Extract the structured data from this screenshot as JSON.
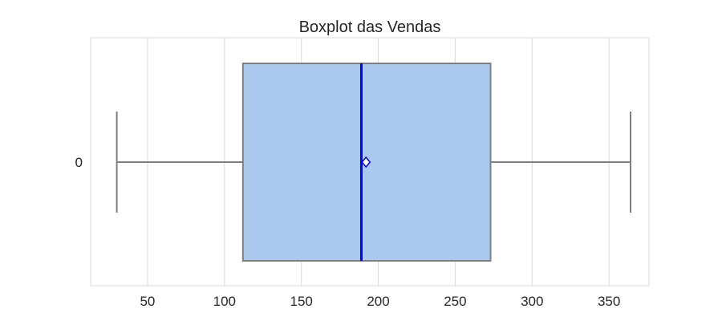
{
  "chart_data": {
    "type": "boxplot",
    "title": "Boxplot das Vendas",
    "xlabel": "",
    "ylabel": "",
    "categories": [
      "0"
    ],
    "xlim": [
      13,
      376
    ],
    "xticks": [
      50,
      100,
      150,
      200,
      250,
      300,
      350
    ],
    "orientation": "horizontal",
    "grid": true,
    "series": [
      {
        "category": "0",
        "whisker_low": 30,
        "q1": 112,
        "median": 189,
        "mean": 192,
        "q3": 273,
        "whisker_high": 364
      }
    ],
    "colors": {
      "box_fill": "#abc9ee",
      "box_edge": "#7f7f7f",
      "median_line": "#0000ff",
      "mean_marker": "#0000ff"
    }
  }
}
